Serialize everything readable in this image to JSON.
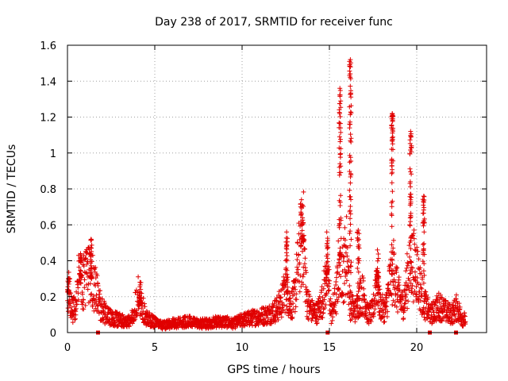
{
  "chart_data": {
    "type": "scatter",
    "title": "Day 238 of 2017, SRMTID for receiver func",
    "xlabel": "GPS time / hours",
    "ylabel": "SRMTID / TECUs",
    "xlim": [
      0,
      24
    ],
    "ylim": [
      0,
      1.6
    ],
    "grid": true,
    "marker": "+",
    "color": "#e00000",
    "xticks": [
      0,
      5,
      10,
      15,
      20
    ],
    "xtick_labels": [
      "0",
      "5",
      "10",
      "15",
      "20"
    ],
    "yticks": [
      0,
      0.2,
      0.4,
      0.6,
      0.8,
      1.0,
      1.2,
      1.4,
      1.6
    ],
    "ytick_labels": [
      "0",
      "0.2",
      "0.4",
      "0.6",
      "0.8",
      "1",
      "1.2",
      "1.4",
      "1.6"
    ],
    "zero_markers_x": [
      1.75,
      14.9,
      20.75,
      22.25
    ],
    "envelope": [
      [
        0.0,
        0.24
      ],
      [
        0.15,
        0.2
      ],
      [
        0.3,
        0.12
      ],
      [
        0.5,
        0.16
      ],
      [
        0.7,
        0.33
      ],
      [
        0.9,
        0.28
      ],
      [
        1.1,
        0.3
      ],
      [
        1.3,
        0.32
      ],
      [
        1.5,
        0.27
      ],
      [
        1.7,
        0.22
      ],
      [
        1.9,
        0.14
      ],
      [
        2.2,
        0.1
      ],
      [
        2.5,
        0.08
      ],
      [
        3.0,
        0.07
      ],
      [
        3.5,
        0.06
      ],
      [
        3.8,
        0.09
      ],
      [
        4.0,
        0.22
      ],
      [
        4.2,
        0.17
      ],
      [
        4.5,
        0.08
      ],
      [
        5.0,
        0.06
      ],
      [
        5.5,
        0.04
      ],
      [
        6.0,
        0.05
      ],
      [
        6.5,
        0.06
      ],
      [
        7.0,
        0.06
      ],
      [
        7.5,
        0.05
      ],
      [
        8.0,
        0.05
      ],
      [
        8.5,
        0.06
      ],
      [
        9.0,
        0.06
      ],
      [
        9.5,
        0.05
      ],
      [
        10.0,
        0.07
      ],
      [
        10.5,
        0.08
      ],
      [
        11.0,
        0.09
      ],
      [
        11.5,
        0.1
      ],
      [
        12.0,
        0.13
      ],
      [
        12.3,
        0.18
      ],
      [
        12.5,
        0.25
      ],
      [
        12.8,
        0.15
      ],
      [
        13.0,
        0.2
      ],
      [
        13.3,
        0.45
      ],
      [
        13.5,
        0.55
      ],
      [
        13.7,
        0.18
      ],
      [
        14.0,
        0.12
      ],
      [
        14.3,
        0.11
      ],
      [
        14.6,
        0.18
      ],
      [
        14.9,
        0.35
      ],
      [
        15.1,
        0.1
      ],
      [
        15.4,
        0.2
      ],
      [
        15.6,
        0.45
      ],
      [
        15.8,
        0.35
      ],
      [
        16.0,
        0.45
      ],
      [
        16.2,
        0.15
      ],
      [
        16.5,
        0.12
      ],
      [
        16.8,
        0.22
      ],
      [
        17.0,
        0.2
      ],
      [
        17.2,
        0.1
      ],
      [
        17.5,
        0.12
      ],
      [
        17.7,
        0.32
      ],
      [
        17.9,
        0.15
      ],
      [
        18.2,
        0.12
      ],
      [
        18.5,
        0.3
      ],
      [
        18.7,
        0.35
      ],
      [
        18.9,
        0.22
      ],
      [
        19.2,
        0.15
      ],
      [
        19.4,
        0.25
      ],
      [
        19.6,
        0.4
      ],
      [
        19.8,
        0.38
      ],
      [
        20.0,
        0.35
      ],
      [
        20.2,
        0.25
      ],
      [
        20.5,
        0.15
      ],
      [
        20.8,
        0.1
      ],
      [
        21.0,
        0.12
      ],
      [
        21.3,
        0.15
      ],
      [
        21.6,
        0.12
      ],
      [
        22.0,
        0.1
      ],
      [
        22.3,
        0.14
      ],
      [
        22.6,
        0.08
      ],
      [
        22.8,
        0.07
      ]
    ],
    "spikes": [
      {
        "x": 0.05,
        "peak": 0.3,
        "width": 0.12
      },
      {
        "x": 0.75,
        "peak": 0.44,
        "width": 0.12
      },
      {
        "x": 1.35,
        "peak": 0.52,
        "width": 0.08
      },
      {
        "x": 4.15,
        "peak": 0.28,
        "width": 0.15
      },
      {
        "x": 12.55,
        "peak": 0.56,
        "width": 0.12
      },
      {
        "x": 13.45,
        "peak": 0.71,
        "width": 0.2
      },
      {
        "x": 14.85,
        "peak": 0.56,
        "width": 0.1
      },
      {
        "x": 15.6,
        "peak": 1.36,
        "width": 0.1
      },
      {
        "x": 16.2,
        "peak": 1.52,
        "width": 0.1
      },
      {
        "x": 16.65,
        "peak": 0.57,
        "width": 0.12
      },
      {
        "x": 17.75,
        "peak": 0.46,
        "width": 0.15
      },
      {
        "x": 18.6,
        "peak": 1.22,
        "width": 0.1
      },
      {
        "x": 19.65,
        "peak": 1.12,
        "width": 0.1
      },
      {
        "x": 20.4,
        "peak": 0.76,
        "width": 0.1
      }
    ]
  }
}
